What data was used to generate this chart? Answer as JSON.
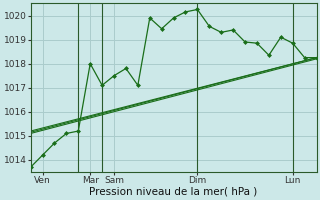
{
  "bg_color": "#cce8e8",
  "grid_color": "#aacccc",
  "line_color": "#1a6e1a",
  "ylim": [
    1013.5,
    1020.5
  ],
  "yticks": [
    1014,
    1015,
    1016,
    1017,
    1018,
    1019,
    1020
  ],
  "xlim": [
    0,
    12
  ],
  "series_main": {
    "x": [
      0,
      0.5,
      1.0,
      1.5,
      2.0,
      2.5,
      3.0,
      3.5,
      4.0,
      4.5,
      5.0,
      5.5,
      6.0,
      6.5,
      7.0,
      7.5,
      8.0,
      8.5,
      9.0,
      9.5,
      10.0,
      10.5,
      11.0,
      11.5,
      12.0
    ],
    "y": [
      1013.7,
      1014.2,
      1014.7,
      1015.1,
      1015.2,
      1018.0,
      1017.1,
      1017.5,
      1017.8,
      1017.1,
      1019.9,
      1019.45,
      1019.9,
      1020.15,
      1020.25,
      1019.55,
      1019.3,
      1019.4,
      1018.9,
      1018.85,
      1018.35,
      1019.1,
      1018.85,
      1018.25,
      1018.25
    ],
    "marker": "D",
    "markersize": 2.0,
    "linewidth": 0.9
  },
  "series_smooth": [
    {
      "x": [
        0,
        12
      ],
      "y": [
        1015.1,
        1018.2
      ],
      "linewidth": 0.8
    },
    {
      "x": [
        0,
        12
      ],
      "y": [
        1015.15,
        1018.25
      ],
      "linewidth": 0.8
    },
    {
      "x": [
        0,
        12
      ],
      "y": [
        1015.2,
        1018.25
      ],
      "linewidth": 0.8
    }
  ],
  "vlines": [
    {
      "x": 2,
      "color": "#2a5a2a",
      "lw": 0.8
    },
    {
      "x": 3,
      "color": "#2a5a2a",
      "lw": 0.8
    },
    {
      "x": 7,
      "color": "#2a5a2a",
      "lw": 0.8
    },
    {
      "x": 11,
      "color": "#2a5a2a",
      "lw": 0.8
    }
  ],
  "xtick_positions": [
    0.5,
    2.5,
    3.5,
    7.0,
    11.0
  ],
  "xtick_labels": [
    "Ven",
    "Mar",
    "Sam",
    "Dim",
    "Lun"
  ],
  "xlabel": "Pression niveau de la mer( hPa )",
  "tick_fontsize": 6.5,
  "xlabel_fontsize": 7.5,
  "ytick_fontsize": 6.5
}
